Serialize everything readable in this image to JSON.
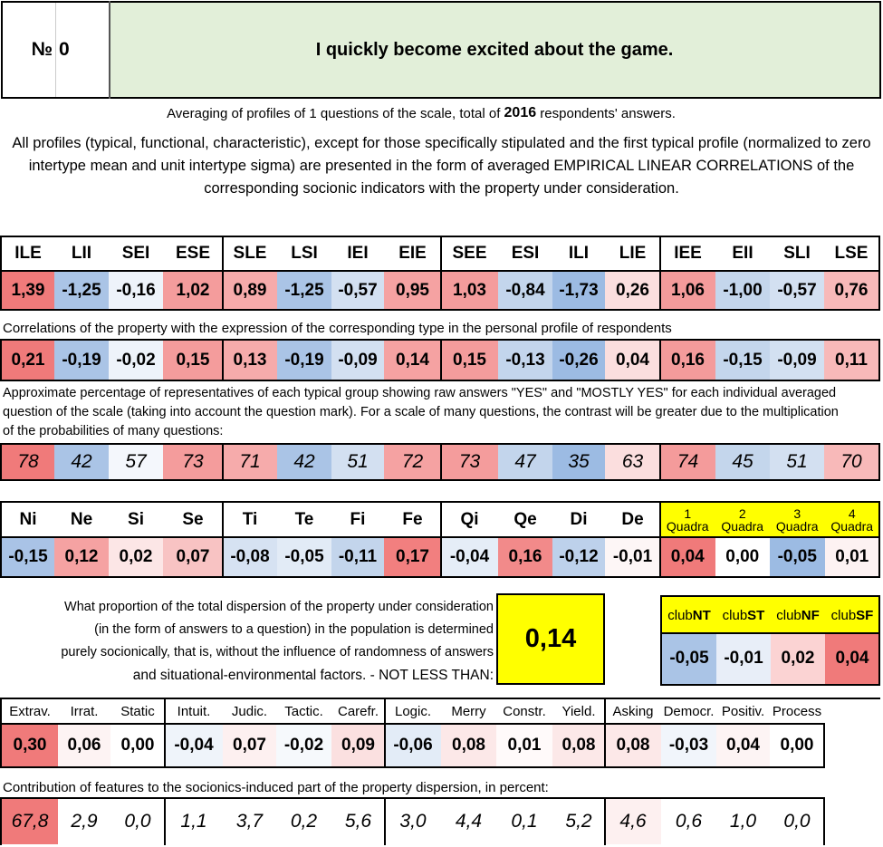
{
  "header": {
    "no_label": "№",
    "no_value": "0",
    "title": "I quickly become excited about the game."
  },
  "averaging": {
    "pre": "Averaging of profiles of 1 questions of the scale, total of ",
    "count": "2016",
    "post": " respondents' answers."
  },
  "description": "All profiles (typical, functional, characteristic), except for those specifically stipulated and the first typical profile (normalized to zero intertype mean and unit intertype sigma) are presented in the form of averaged EMPIRICAL LINEAR CORRELATIONS of the corresponding socionic indicators with the property under consideration.",
  "types": [
    "ILE",
    "LII",
    "SEI",
    "ESE",
    "SLE",
    "LSI",
    "IEI",
    "EIE",
    "SEE",
    "ESI",
    "ILI",
    "LIE",
    "IEE",
    "EII",
    "SLI",
    "LSE"
  ],
  "type_profile": [
    "1,39",
    "-1,25",
    "-0,16",
    "1,02",
    "0,89",
    "-1,25",
    "-0,57",
    "0,95",
    "1,03",
    "-0,84",
    "-1,73",
    "0,26",
    "1,06",
    "-1,00",
    "-0,57",
    "0,76"
  ],
  "type_profile_colors": [
    "#f07a7a",
    "#aac4e6",
    "#eef3fa",
    "#f49c9c",
    "#f6abab",
    "#aac4e6",
    "#d3e0f1",
    "#f5a2a2",
    "#f49c9c",
    "#c3d5ec",
    "#9cbbe3",
    "#fbdede",
    "#f49b9b",
    "#c4d6ec",
    "#d3e0f1",
    "#f8b9b9"
  ],
  "correlation_note": "Correlations of the property with the expression of the corresponding type in the personal profile of respondents",
  "correlations": [
    "0,21",
    "-0,19",
    "-0,02",
    "0,15",
    "0,13",
    "-0,19",
    "-0,09",
    "0,14",
    "0,15",
    "-0,13",
    "-0,26",
    "0,04",
    "0,16",
    "-0,15",
    "-0,09",
    "0,11"
  ],
  "correlation_colors": [
    "#f07a7a",
    "#aac4e6",
    "#eef3fa",
    "#f49c9c",
    "#f6abab",
    "#aac4e6",
    "#d3e0f1",
    "#f5a2a2",
    "#f49c9c",
    "#c3d5ec",
    "#9cbbe3",
    "#fbdede",
    "#f49b9b",
    "#c4d6ec",
    "#d3e0f1",
    "#f8b9b9"
  ],
  "percentage_note": "Approximate percentage of representatives of each typical group showing raw answers \"YES\" and \"MOSTLY YES\" for each individual averaged question of the scale (taking into account the question mark). For a scale of many questions, the contrast will be greater due to the multiplication of the probabilities of many questions:",
  "percentages": [
    "78",
    "42",
    "57",
    "73",
    "71",
    "42",
    "51",
    "72",
    "73",
    "47",
    "35",
    "63",
    "74",
    "45",
    "51",
    "70"
  ],
  "percentage_colors": [
    "#f07a7a",
    "#aac4e6",
    "#f4f7fc",
    "#f49c9c",
    "#f6abab",
    "#aac4e6",
    "#d3e0f1",
    "#f5a2a2",
    "#f49c9c",
    "#c3d5ec",
    "#9cbbe3",
    "#fbdede",
    "#f49b9b",
    "#c4d6ec",
    "#d3e0f1",
    "#f8b9b9"
  ],
  "functions": [
    "Ni",
    "Ne",
    "Si",
    "Se",
    "Ti",
    "Te",
    "Fi",
    "Fe",
    "Qi",
    "Qe",
    "Di",
    "De"
  ],
  "function_values": [
    "-0,15",
    "0,12",
    "0,02",
    "0,07",
    "-0,08",
    "-0,05",
    "-0,11",
    "0,17",
    "-0,04",
    "0,16",
    "-0,12",
    "-0,01"
  ],
  "function_colors": [
    "#a9c3e6",
    "#f5a2a2",
    "#fce6e6",
    "#f8c3c3",
    "#d6e2f2",
    "#e2ebf6",
    "#c3d5ec",
    "#f27f7f",
    "#e5edf7",
    "#f28a8a",
    "#bdd1eb",
    "#fdf6f6"
  ],
  "quadras": [
    {
      "num": "1",
      "label": "Quadra",
      "value": "0,04",
      "color": "#f07a7a"
    },
    {
      "num": "2",
      "label": "Quadra",
      "value": "0,00",
      "color": "#ffffff"
    },
    {
      "num": "3",
      "label": "Quadra",
      "value": "-0,05",
      "color": "#9cbbe3"
    },
    {
      "num": "4",
      "label": "Quadra",
      "value": "0,01",
      "color": "#fdf2f2"
    }
  ],
  "dispersion": {
    "lines": [
      "What proportion of the total dispersion of the property under consideration",
      "(in the form of answers to a question) in the population is determined",
      "purely socionically, that is, without the influence of randomness of answers",
      "and situational-environmental factors. - NOT LESS THAN:"
    ],
    "value": "0,14"
  },
  "clubs": [
    {
      "pre": "club",
      "bold": "NT",
      "value": "-0,05",
      "color": "#aac4e6"
    },
    {
      "pre": "club",
      "bold": "ST",
      "value": "-0,01",
      "color": "#e8eef8"
    },
    {
      "pre": "club",
      "bold": "NF",
      "value": "0,02",
      "color": "#fbd3d3"
    },
    {
      "pre": "club",
      "bold": "SF",
      "value": "0,04",
      "color": "#f07a7a"
    }
  ],
  "traits": [
    "Extrav.",
    "Irrat.",
    "Static",
    "Intuit.",
    "Judic.",
    "Tactic.",
    "Carefr.",
    "Logic.",
    "Merry",
    "Constr.",
    "Yield.",
    "Asking",
    "Democr.",
    "Positiv.",
    "Process"
  ],
  "trait_values": [
    "0,30",
    "0,06",
    "0,00",
    "-0,04",
    "0,07",
    "-0,02",
    "0,09",
    "-0,06",
    "0,08",
    "0,01",
    "0,08",
    "0,08",
    "-0,03",
    "0,04",
    "0,00"
  ],
  "trait_colors": [
    "#f07a7a",
    "#fdf3f3",
    "#ffffff",
    "#eff4fa",
    "#fdf0f0",
    "#f6f9fc",
    "#fbe0e0",
    "#e3ecf7",
    "#fce8e8",
    "#fffafa",
    "#fce8e8",
    "#fce8e8",
    "#f1f5fb",
    "#fdf4f4",
    "#ffffff"
  ],
  "contribution_note": "Contribution of features to the socionics-induced part of the property dispersion, in percent:",
  "contributions": [
    "67,8",
    "2,9",
    "0,0",
    "1,1",
    "3,7",
    "0,2",
    "5,6",
    "3,0",
    "4,4",
    "0,1",
    "5,2",
    "4,6",
    "0,6",
    "1,0",
    "0,0"
  ],
  "contribution_colors": [
    "#f07a7a",
    "#ffffff",
    "#ffffff",
    "#ffffff",
    "#ffffff",
    "#ffffff",
    "#ffffff",
    "#ffffff",
    "#ffffff",
    "#ffffff",
    "#ffffff",
    "#fdf0f0",
    "#ffffff",
    "#ffffff",
    "#ffffff"
  ],
  "colors": {
    "title_bg": "#e2efd9",
    "highlight_yellow": "#ffff00"
  }
}
